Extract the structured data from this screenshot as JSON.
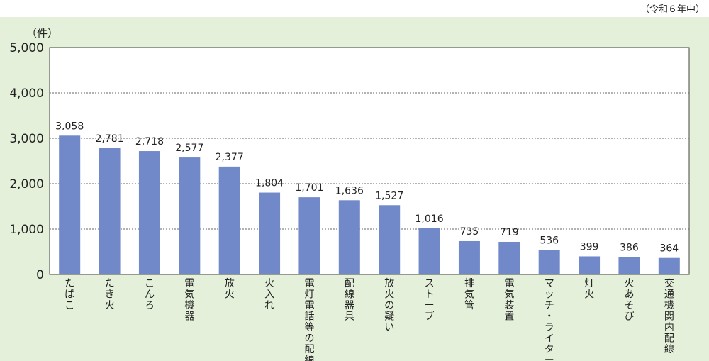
{
  "note": "（令和６年中）",
  "chart_data": {
    "type": "bar",
    "ylabel": "（件）",
    "ylim": [
      0,
      5000
    ],
    "yticks": [
      "0",
      "1,000",
      "2,000",
      "3,000",
      "4,000",
      "5,000"
    ],
    "grid": "horizontal-dashed",
    "bar_color": "#7189c9",
    "categories": [
      "たばこ",
      "たき火",
      "こんろ",
      "電気機器",
      "放火",
      "火入れ",
      "電灯電話等の配線",
      "配線器具",
      "放火の疑い",
      "ストーブ",
      "排気管",
      "電気装置",
      "マッチ・ライター",
      "灯火",
      "火あそび",
      "交通機関内配線"
    ],
    "values": [
      3058,
      2781,
      2718,
      2577,
      2377,
      1804,
      1701,
      1636,
      1527,
      1016,
      735,
      719,
      536,
      399,
      386,
      364
    ],
    "value_labels": [
      "3,058",
      "2,781",
      "2,718",
      "2,577",
      "2,377",
      "1,804",
      "1,701",
      "1,636",
      "1,527",
      "1,016",
      "735",
      "719",
      "536",
      "399",
      "386",
      "364"
    ]
  }
}
